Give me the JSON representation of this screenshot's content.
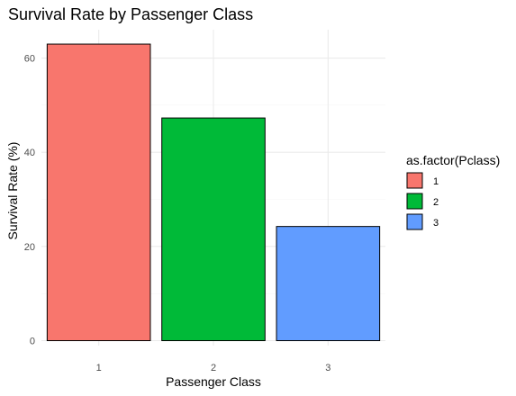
{
  "chart_data": {
    "type": "bar",
    "title": "Survival Rate by Passenger Class",
    "xlabel": "Passenger Class",
    "ylabel": "Survival Rate (%)",
    "categories": [
      "1",
      "2",
      "3"
    ],
    "values": [
      62.96,
      47.28,
      24.24
    ],
    "ylim": [
      0,
      65
    ],
    "yticks": [
      "0",
      "20",
      "40",
      "60"
    ],
    "grid": true,
    "legend": {
      "title": "as.factor(Pclass)",
      "placement": "right",
      "entries": [
        "1",
        "2",
        "3"
      ]
    },
    "colors": [
      "#F8766D",
      "#00BA38",
      "#619CFF"
    ]
  }
}
